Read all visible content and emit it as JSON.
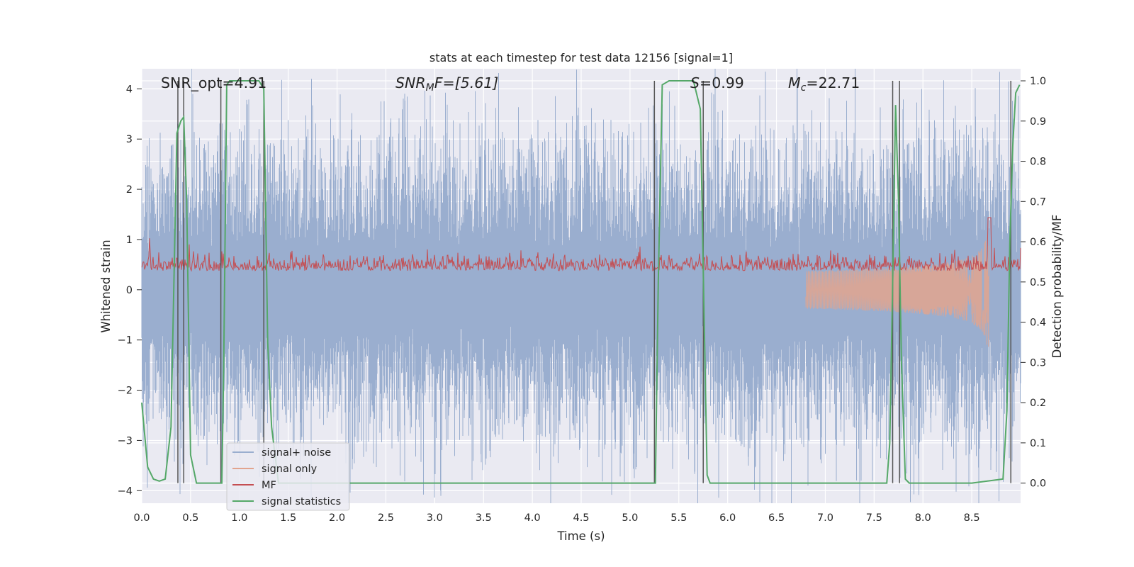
{
  "chart_data": {
    "type": "line",
    "title": "stats at each timestep for test data 12156 [signal=1]",
    "xlabel": "Time (s)",
    "ylabel": "Whitened strain",
    "ylabel_right": "Detection probability/MF",
    "xlim": [
      0.0,
      9.0
    ],
    "ylim": [
      -4.25,
      4.4
    ],
    "ylim_right": [
      -0.05,
      1.03
    ],
    "x_ticks": [
      "0.0",
      "0.5",
      "1.0",
      "1.5",
      "2.0",
      "2.5",
      "3.0",
      "3.5",
      "4.0",
      "4.5",
      "5.0",
      "5.5",
      "6.0",
      "6.5",
      "7.0",
      "7.5",
      "8.0",
      "8.5"
    ],
    "x_tick_values": [
      0,
      0.5,
      1,
      1.5,
      2,
      2.5,
      3,
      3.5,
      4,
      4.5,
      5,
      5.5,
      6,
      6.5,
      7,
      7.5,
      8,
      8.5
    ],
    "y_ticks": [
      "4",
      "3",
      "2",
      "1",
      "0",
      "−1",
      "−2",
      "−3",
      "−4"
    ],
    "y_tick_values": [
      4,
      3,
      2,
      1,
      0,
      -1,
      -2,
      -3,
      -4
    ],
    "y_right_ticks": [
      "1.0",
      "0.9",
      "0.8",
      "0.7",
      "0.6",
      "0.5",
      "0.4",
      "0.3",
      "0.2",
      "0.1",
      "0.0"
    ],
    "y_right_tick_values": [
      1.0,
      0.9,
      0.8,
      0.7,
      0.6,
      0.5,
      0.4,
      0.3,
      0.2,
      0.1,
      0.0
    ],
    "grid": true,
    "legend_position": "bottom-left",
    "annotations": {
      "snr_opt": "SNR_opt=4.91",
      "snr_mf_main": "SNR",
      "snr_mf_sub": "M",
      "snr_mf_rest": "F=[5.61]",
      "s_main": "S",
      "s_rest": "=0.99",
      "mc_main": "M",
      "mc_sub": "c",
      "mc_rest": "=22.71"
    },
    "series": [
      {
        "name": "signal+ noise",
        "color": "#9aaecf",
        "noise_amplitude": 2.2
      },
      {
        "name": "signal only",
        "color": "#e2a48e",
        "chirp_end_time": 8.68,
        "peak_amplitude": 1.3
      },
      {
        "name": "MF",
        "color": "#c44e52",
        "baseline": 0.5,
        "typical_range": [
          0.49,
          0.58
        ],
        "peak_time": 8.68,
        "peak_value": 0.66
      },
      {
        "name": "signal statistics",
        "color": "#55a868",
        "axis": "right",
        "x": [
          0.0,
          0.06,
          0.12,
          0.18,
          0.24,
          0.3,
          0.36,
          0.4,
          0.43,
          0.46,
          0.5,
          0.56,
          0.62,
          0.8,
          0.82,
          0.84,
          0.87,
          0.9,
          1.0,
          1.2,
          1.25,
          1.29,
          1.33,
          1.4,
          2.0,
          3.0,
          4.0,
          5.0,
          5.2,
          5.26,
          5.29,
          5.33,
          5.4,
          5.5,
          5.6,
          5.65,
          5.72,
          5.76,
          5.79,
          5.82,
          5.88,
          6.2,
          7.0,
          7.5,
          7.63,
          7.66,
          7.69,
          7.72,
          7.75,
          7.78,
          7.82,
          7.86,
          7.9,
          8.0,
          8.5,
          8.82,
          8.86,
          8.89,
          8.92,
          8.95,
          8.99
        ],
        "y": [
          0.2,
          0.04,
          0.01,
          0.005,
          0.01,
          0.14,
          0.87,
          0.9,
          0.91,
          0.7,
          0.07,
          0.0,
          0.0,
          0.0,
          0.0,
          0.3,
          0.99,
          1.0,
          1.0,
          1.0,
          0.98,
          0.35,
          0.14,
          0.0,
          0.0,
          0.0,
          0.0,
          0.0,
          0.0,
          0.0,
          0.5,
          0.99,
          1.0,
          1.0,
          1.0,
          1.0,
          0.93,
          0.4,
          0.02,
          0.0,
          0.0,
          0.0,
          0.0,
          0.0,
          0.0,
          0.1,
          0.5,
          0.94,
          0.7,
          0.3,
          0.01,
          0.0,
          0.0,
          0.0,
          0.0,
          0.01,
          0.18,
          0.6,
          0.84,
          0.97,
          0.99
        ]
      }
    ],
    "vertical_lines": [
      0.37,
      0.43,
      0.81,
      1.25,
      5.25,
      5.75,
      7.69,
      7.76,
      8.9
    ],
    "vertical_line_color": "#555555"
  }
}
